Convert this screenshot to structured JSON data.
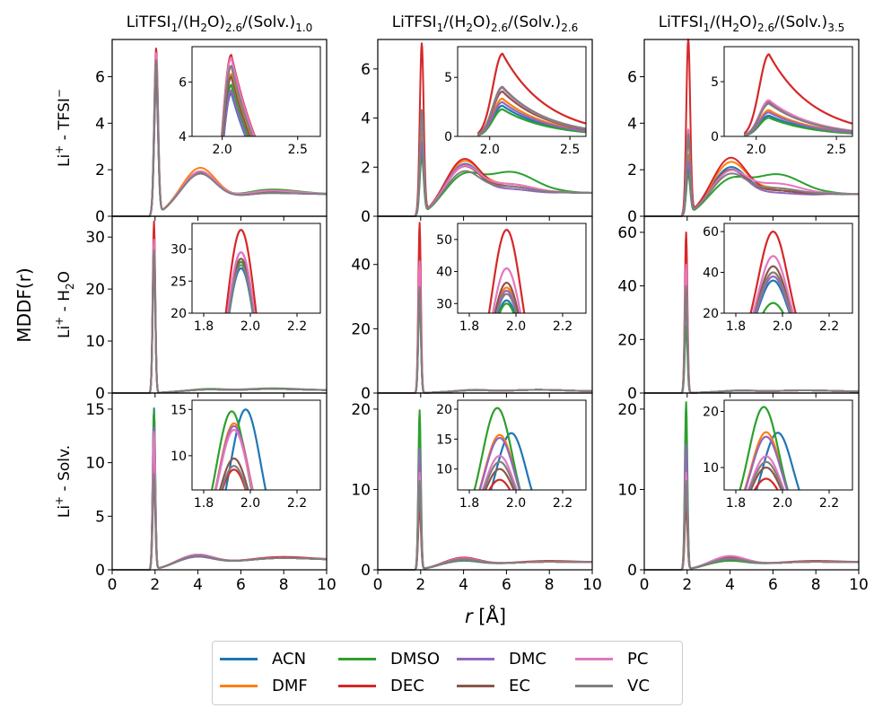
{
  "figure": {
    "ylabel": "MDDF(r)",
    "xlabel_main": "r",
    "xlabel_unit": "[Å]"
  },
  "columns": [
    {
      "title_parts": [
        "LiTFSI",
        "1",
        "/(H",
        "2",
        "O)",
        "2.6",
        "/(Solv.)",
        "1.0"
      ]
    },
    {
      "title_parts": [
        "LiTFSI",
        "1",
        "/(H",
        "2",
        "O)",
        "2.6",
        "/(Solv.)",
        "2.6"
      ]
    },
    {
      "title_parts": [
        "LiTFSI",
        "1",
        "/(H",
        "2",
        "O)",
        "2.6",
        "/(Solv.)",
        "3.5"
      ]
    }
  ],
  "rows": [
    {
      "label_parts": [
        "Li",
        "+",
        " - TFSI",
        "−"
      ]
    },
    {
      "label_parts": [
        "Li",
        "+",
        " - H",
        "2",
        "O"
      ]
    },
    {
      "label_parts": [
        "Li",
        "+",
        " - Solv."
      ]
    }
  ],
  "legend": [
    {
      "name": "ACN",
      "color": "#1f77b4"
    },
    {
      "name": "DMF",
      "color": "#ff7f0e"
    },
    {
      "name": "DMSO",
      "color": "#2ca02c"
    },
    {
      "name": "DEC",
      "color": "#d62728"
    },
    {
      "name": "DMC",
      "color": "#9467bd"
    },
    {
      "name": "EC",
      "color": "#8c564b"
    },
    {
      "name": "PC",
      "color": "#e377c2"
    },
    {
      "name": "VC",
      "color": "#7f7f7f"
    }
  ],
  "chart_data": {
    "type": "line",
    "series_names": [
      "ACN",
      "DMF",
      "DMSO",
      "DEC",
      "DMC",
      "EC",
      "PC",
      "VC"
    ],
    "xlim": [
      0,
      10
    ],
    "x_ticks": [
      "0",
      "2",
      "4",
      "6",
      "8",
      "10"
    ],
    "panels": [
      {
        "row": 0,
        "col": 0,
        "ylim": [
          0,
          7.6
        ],
        "y_ticks": [
          0,
          2,
          4,
          6
        ],
        "first_peak": {
          "r": 2.05,
          "heights": [
            5.6,
            6.3,
            5.9,
            7.1,
            5.7,
            6.2,
            6.9,
            6.6
          ]
        },
        "second_peak": {
          "r": 4.1,
          "heights": [
            1.8,
            1.95,
            1.7,
            1.75,
            1.7,
            1.75,
            1.8,
            1.7
          ]
        },
        "third_peak": {
          "r": 7.5,
          "heights": [
            1.0,
            1.05,
            1.15,
            1.05,
            1.0,
            1.05,
            1.1,
            1.0
          ]
        },
        "inset": {
          "xlim": [
            1.8,
            2.65
          ],
          "ylim": [
            4,
            7.3
          ],
          "x_ticks": [
            "2.0",
            "2.5"
          ],
          "y_ticks": [
            4,
            6
          ],
          "peak_r": 2.06,
          "heights": [
            5.6,
            6.3,
            5.9,
            7.0,
            5.7,
            6.2,
            6.9,
            6.6
          ]
        }
      },
      {
        "row": 0,
        "col": 1,
        "ylim": [
          0,
          7.2
        ],
        "y_ticks": [
          0,
          2,
          4,
          6
        ],
        "first_peak": {
          "r": 2.05,
          "heights": [
            2.6,
            3.2,
            2.3,
            6.9,
            2.9,
            3.8,
            4.0,
            4.2
          ]
        },
        "second_peak": {
          "r": 4.0,
          "heights": [
            1.9,
            2.0,
            1.4,
            2.1,
            1.9,
            1.8,
            1.8,
            1.6
          ]
        },
        "third_peak": {
          "r": 6.2,
          "heights": [
            1.2,
            1.3,
            1.8,
            1.2,
            1.1,
            1.2,
            1.3,
            1.2
          ]
        },
        "inset": {
          "xlim": [
            1.8,
            2.6
          ],
          "ylim": [
            0,
            7.6
          ],
          "x_ticks": [
            "2.0",
            "2.5"
          ],
          "y_ticks": [
            0,
            5
          ],
          "peak_r": 2.08,
          "heights": [
            2.6,
            3.2,
            2.3,
            7.0,
            2.9,
            3.8,
            4.1,
            4.2
          ]
        }
      },
      {
        "row": 0,
        "col": 2,
        "ylim": [
          0,
          7.6
        ],
        "y_ticks": [
          0,
          2,
          4,
          6
        ],
        "first_peak": {
          "r": 2.05,
          "heights": [
            1.9,
            2.5,
            1.7,
            7.5,
            2.2,
            3.2,
            3.6,
            3.4
          ]
        },
        "second_peak": {
          "r": 4.0,
          "heights": [
            1.9,
            2.1,
            1.3,
            2.3,
            1.8,
            1.8,
            1.7,
            1.6
          ]
        },
        "third_peak": {
          "r": 6.2,
          "heights": [
            1.1,
            1.2,
            1.8,
            1.1,
            1.0,
            1.1,
            1.4,
            1.2
          ]
        },
        "inset": {
          "xlim": [
            1.8,
            2.6
          ],
          "ylim": [
            0,
            8.2
          ],
          "x_ticks": [
            "2.0",
            "2.5"
          ],
          "y_ticks": [
            0,
            5
          ],
          "peak_r": 2.08,
          "heights": [
            1.9,
            2.4,
            1.7,
            7.5,
            2.2,
            3.1,
            3.3,
            3.0
          ]
        }
      },
      {
        "row": 1,
        "col": 0,
        "ylim": [
          0,
          34
        ],
        "y_ticks": [
          0,
          10,
          20,
          30
        ],
        "first_peak": {
          "r": 1.95,
          "heights": [
            27,
            28,
            28,
            33,
            29,
            28.5,
            29.5,
            27.5
          ]
        },
        "second_peak": {
          "r": 4.5,
          "heights": [
            0.6,
            0.6,
            0.7,
            0.6,
            0.6,
            0.6,
            0.6,
            0.6
          ]
        },
        "third_peak": {
          "r": 7.5,
          "heights": [
            0.8,
            0.8,
            0.9,
            0.8,
            0.8,
            0.8,
            0.8,
            0.8
          ]
        },
        "inset": {
          "xlim": [
            1.75,
            2.3
          ],
          "ylim": [
            20,
            34
          ],
          "x_ticks": [
            "1.8",
            "2.0",
            "2.2"
          ],
          "y_ticks": [
            20,
            25,
            30
          ],
          "peak_r": 1.96,
          "heights": [
            27,
            28,
            28,
            33,
            29.5,
            28.5,
            29.5,
            27.5
          ]
        }
      },
      {
        "row": 1,
        "col": 1,
        "ylim": [
          0,
          55
        ],
        "y_ticks": [
          0,
          20,
          40
        ],
        "first_peak": {
          "r": 1.95,
          "heights": [
            31,
            35,
            30,
            53,
            34,
            36,
            41,
            33
          ]
        },
        "second_peak": {
          "r": 4.5,
          "heights": [
            0.8,
            0.8,
            0.9,
            0.8,
            0.8,
            0.8,
            0.8,
            0.8
          ]
        },
        "third_peak": {
          "r": 7.5,
          "heights": [
            1.0,
            1.0,
            1.0,
            1.0,
            1.0,
            1.0,
            1.0,
            1.0
          ]
        },
        "inset": {
          "xlim": [
            1.75,
            2.3
          ],
          "ylim": [
            27,
            55
          ],
          "x_ticks": [
            "1.8",
            "2.0",
            "2.2"
          ],
          "y_ticks": [
            30,
            40,
            50
          ],
          "peak_r": 1.96,
          "heights": [
            31,
            35,
            30,
            53,
            34,
            36.5,
            41,
            33
          ]
        }
      },
      {
        "row": 1,
        "col": 2,
        "ylim": [
          0,
          66
        ],
        "y_ticks": [
          0,
          20,
          40,
          60
        ],
        "first_peak": {
          "r": 1.95,
          "heights": [
            36,
            40,
            25,
            60,
            38,
            43,
            48,
            40
          ]
        },
        "second_peak": {
          "r": 4.5,
          "heights": [
            0.8,
            0.8,
            0.9,
            0.8,
            0.8,
            0.8,
            0.8,
            0.8
          ]
        },
        "third_peak": {
          "r": 7.5,
          "heights": [
            1.0,
            1.0,
            1.0,
            1.0,
            1.0,
            1.0,
            1.0,
            1.0
          ]
        },
        "inset": {
          "xlim": [
            1.75,
            2.3
          ],
          "ylim": [
            20,
            64
          ],
          "x_ticks": [
            "1.8",
            "2.0",
            "2.2"
          ],
          "y_ticks": [
            20,
            40,
            60
          ],
          "peak_r": 1.96,
          "heights": [
            36,
            40,
            25,
            60,
            38,
            43,
            48,
            40
          ]
        }
      },
      {
        "row": 2,
        "col": 0,
        "ylim": [
          0,
          16.5
        ],
        "y_ticks": [
          0,
          5,
          10,
          15
        ],
        "first_peak": {
          "r": 1.95,
          "heights": [
            15,
            13.5,
            14.8,
            8.5,
            13.2,
            9.7,
            12.8,
            8.9
          ]
        },
        "second_peak": {
          "r": 4.0,
          "heights": [
            1.2,
            1.2,
            1.1,
            1.3,
            1.1,
            1.2,
            1.3,
            1.2
          ]
        },
        "third_peak": {
          "r": 8.0,
          "heights": [
            1.1,
            1.1,
            1.1,
            1.2,
            1.1,
            1.1,
            1.1,
            1.1
          ]
        },
        "inset": {
          "xlim": [
            1.75,
            2.3
          ],
          "ylim": [
            6.3,
            16
          ],
          "x_ticks": [
            "1.8",
            "2.0",
            "2.2"
          ],
          "y_ticks": [
            10,
            15
          ],
          "peak_r": 1.93,
          "heights": [
            15,
            13.5,
            14.8,
            8.5,
            13.2,
            9.7,
            12.8,
            8.9
          ]
        }
      },
      {
        "row": 2,
        "col": 1,
        "ylim": [
          0,
          22
        ],
        "y_ticks": [
          0,
          10,
          20
        ],
        "first_peak": {
          "r": 1.95,
          "heights": [
            16,
            15.5,
            19.8,
            8.0,
            15.0,
            10.0,
            12.0,
            11.0
          ]
        },
        "second_peak": {
          "r": 4.0,
          "heights": [
            1.2,
            1.2,
            1.0,
            1.4,
            1.1,
            1.2,
            1.3,
            1.2
          ]
        },
        "third_peak": {
          "r": 8.0,
          "heights": [
            1.0,
            1.0,
            1.0,
            1.1,
            1.0,
            1.0,
            1.0,
            1.0
          ]
        },
        "inset": {
          "xlim": [
            1.75,
            2.3
          ],
          "ylim": [
            6.5,
            21.5
          ],
          "x_ticks": [
            "1.8",
            "2.0",
            "2.2"
          ],
          "y_ticks": [
            10,
            15,
            20
          ],
          "peak_r": 1.93,
          "heights": [
            16,
            15.7,
            20.2,
            8.2,
            15.2,
            10.0,
            12.2,
            11.2
          ]
        }
      },
      {
        "row": 2,
        "col": 2,
        "ylim": [
          0,
          22
        ],
        "y_ticks": [
          0,
          10,
          20
        ],
        "first_peak": {
          "r": 1.95,
          "heights": [
            16.2,
            16.3,
            20.8,
            8.0,
            15.5,
            10.0,
            12.0,
            11.0
          ]
        },
        "second_peak": {
          "r": 4.0,
          "heights": [
            1.3,
            1.3,
            1.0,
            1.5,
            1.2,
            1.3,
            1.6,
            1.3
          ]
        },
        "third_peak": {
          "r": 8.0,
          "heights": [
            1.0,
            1.0,
            1.0,
            1.1,
            1.0,
            1.0,
            1.0,
            1.0
          ]
        },
        "inset": {
          "xlim": [
            1.75,
            2.3
          ],
          "ylim": [
            6.0,
            22
          ],
          "x_ticks": [
            "1.8",
            "2.0",
            "2.2"
          ],
          "y_ticks": [
            10,
            20
          ],
          "peak_r": 1.93,
          "heights": [
            16.2,
            16.3,
            20.8,
            8.0,
            15.5,
            10.0,
            12.0,
            11.0
          ]
        }
      }
    ]
  }
}
